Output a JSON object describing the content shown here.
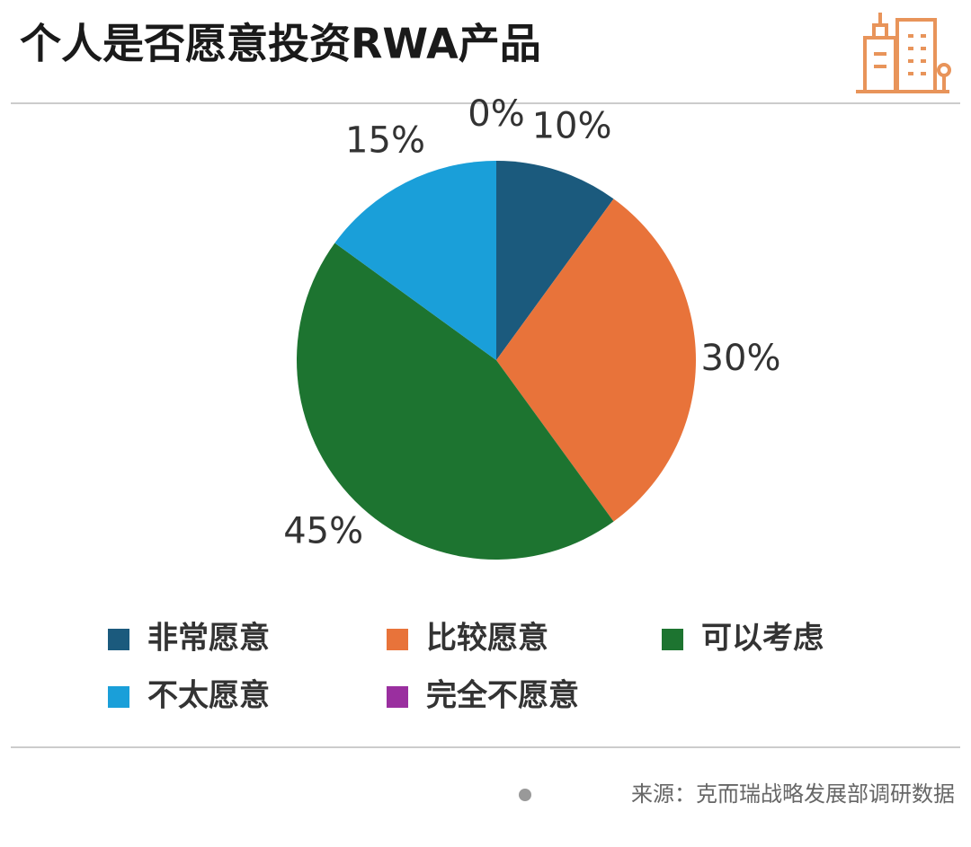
{
  "chart_data": {
    "type": "pie",
    "title": "个人是否愿意投资RWA产品",
    "categories": [
      "非常愿意",
      "比较愿意",
      "可以考虑",
      "不太愿意",
      "完全不愿意"
    ],
    "values": [
      10,
      30,
      45,
      15,
      0
    ],
    "value_labels": [
      "10%",
      "30%",
      "45%",
      "15%",
      "0%"
    ],
    "colors": [
      "#1b5a7d",
      "#e8733a",
      "#1d7430",
      "#1a9fd9",
      "#9a2f9f"
    ],
    "source": "来源：克而瑞战略发展部调研数据"
  }
}
